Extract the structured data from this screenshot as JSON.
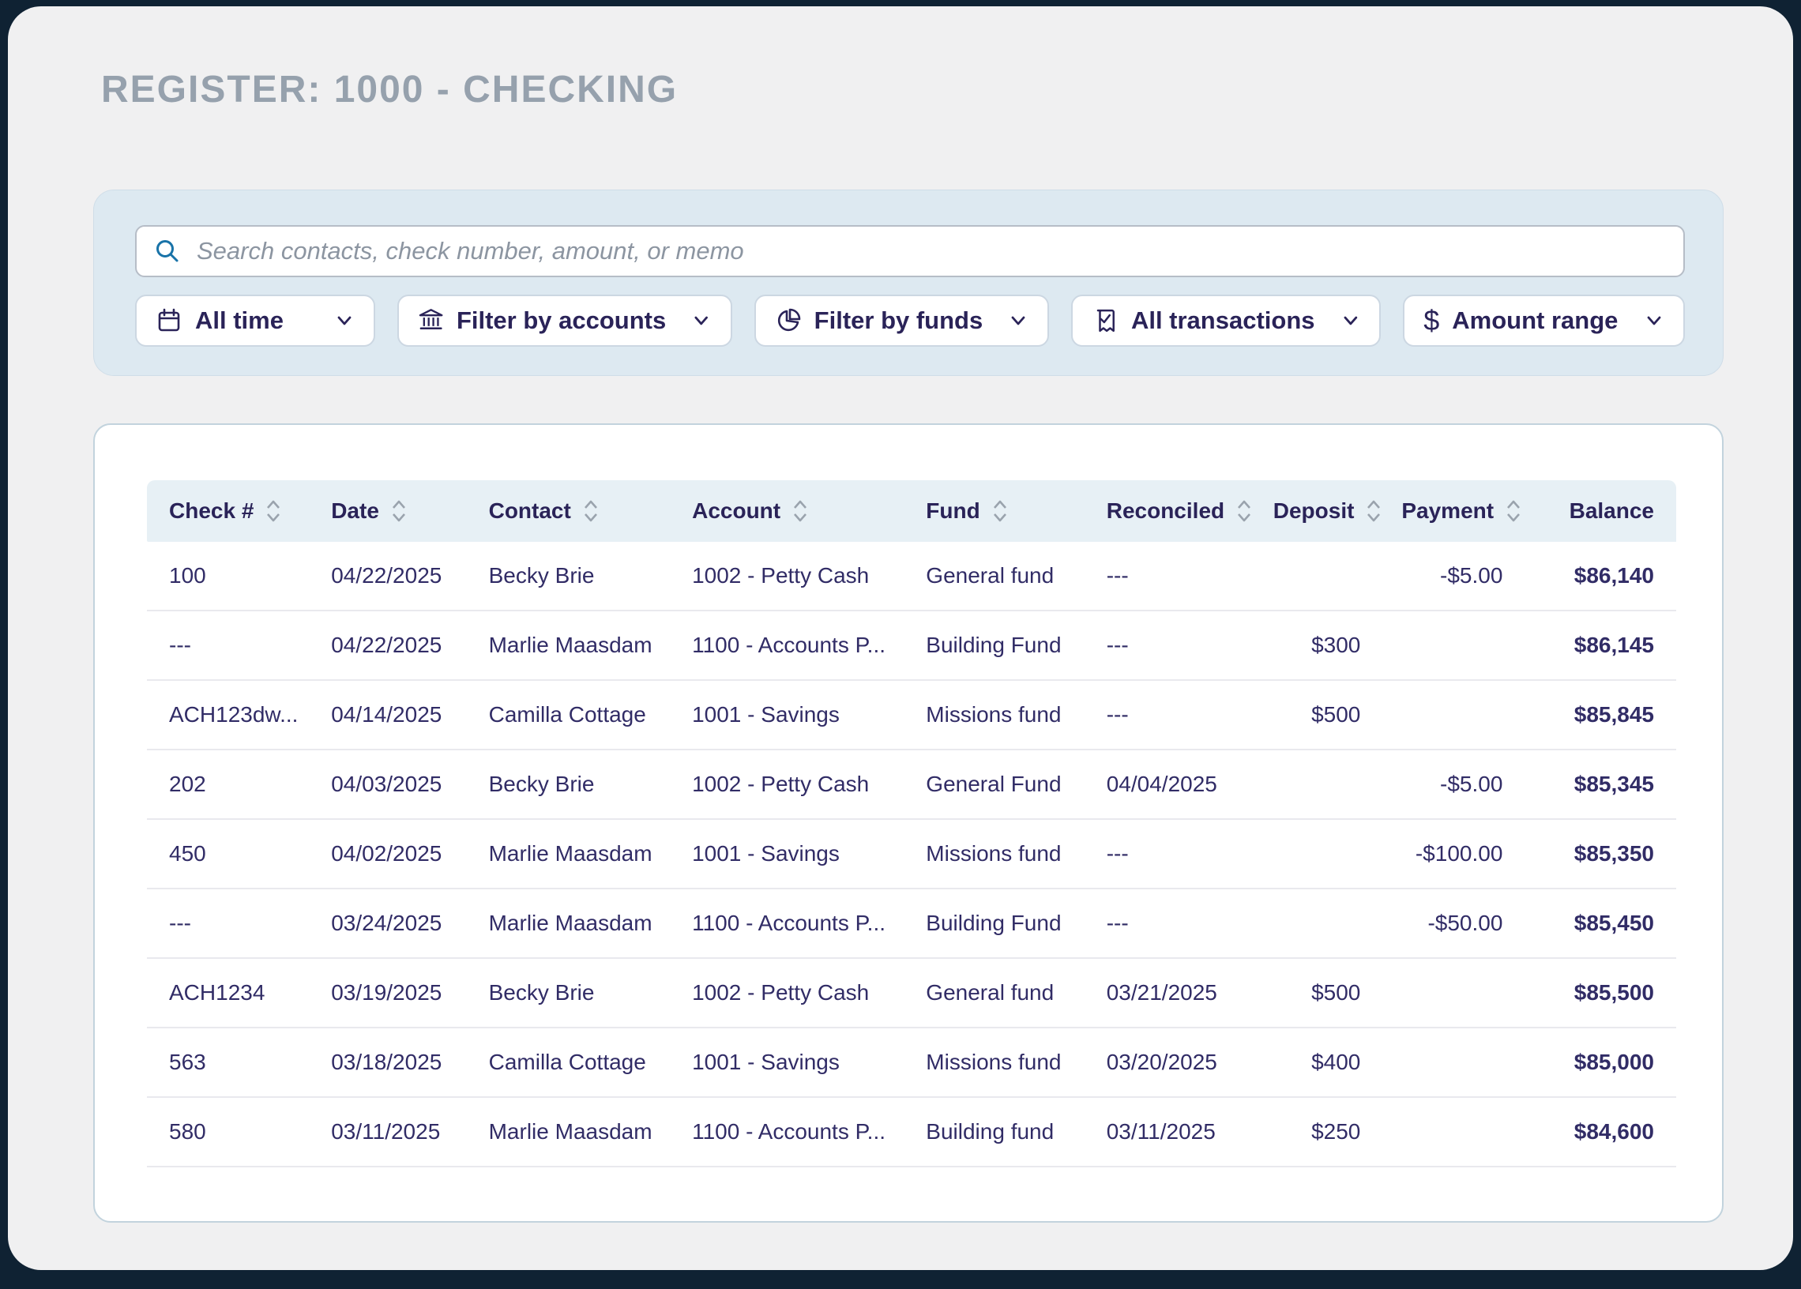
{
  "page": {
    "title": "REGISTER: 1000 - CHECKING"
  },
  "search": {
    "placeholder": "Search contacts, check number, amount, or memo"
  },
  "filters": [
    {
      "icon": "calendar-icon",
      "label": "All time"
    },
    {
      "icon": "bank-icon",
      "label": "Filter by accounts"
    },
    {
      "icon": "pie-chart-icon",
      "label": "Filter by funds"
    },
    {
      "icon": "receipt-check-icon",
      "label": "All transactions"
    },
    {
      "icon": "dollar-icon",
      "label": "Amount range"
    }
  ],
  "dollar_glyph": "$",
  "table": {
    "columns": [
      {
        "label": "Check #",
        "sortable": true,
        "align": "left"
      },
      {
        "label": "Date",
        "sortable": true,
        "align": "left"
      },
      {
        "label": "Contact",
        "sortable": true,
        "align": "left"
      },
      {
        "label": "Account",
        "sortable": true,
        "align": "left"
      },
      {
        "label": "Fund",
        "sortable": true,
        "align": "left"
      },
      {
        "label": "Reconciled",
        "sortable": true,
        "align": "left"
      },
      {
        "label": "Deposit",
        "sortable": true,
        "align": "num"
      },
      {
        "label": "Payment",
        "sortable": true,
        "align": "num"
      },
      {
        "label": "Balance",
        "sortable": false,
        "align": "bal"
      }
    ],
    "rows": [
      [
        "100",
        "04/22/2025",
        "Becky Brie",
        "1002 - Petty Cash",
        "General fund",
        "---",
        "",
        "-$5.00",
        "$86,140"
      ],
      [
        "---",
        "04/22/2025",
        "Marlie Maasdam",
        "1100 - Accounts P...",
        "Building Fund",
        "---",
        "$300",
        "",
        "$86,145"
      ],
      [
        "ACH123dw...",
        "04/14/2025",
        "Camilla Cottage",
        "1001 - Savings",
        "Missions fund",
        "---",
        "$500",
        "",
        "$85,845"
      ],
      [
        "202",
        "04/03/2025",
        "Becky Brie",
        "1002 - Petty Cash",
        "General Fund",
        "04/04/2025",
        "",
        "-$5.00",
        "$85,345"
      ],
      [
        "450",
        "04/02/2025",
        "Marlie Maasdam",
        "1001 - Savings",
        "Missions fund",
        "---",
        "",
        "-$100.00",
        "$85,350"
      ],
      [
        "---",
        "03/24/2025",
        "Marlie Maasdam",
        "1100 - Accounts P...",
        "Building Fund",
        "---",
        "",
        "-$50.00",
        "$85,450"
      ],
      [
        "ACH1234",
        "03/19/2025",
        "Becky Brie",
        "1002 - Petty Cash",
        "General fund",
        "03/21/2025",
        "$500",
        "",
        "$85,500"
      ],
      [
        "563",
        "03/18/2025",
        "Camilla Cottage",
        "1001 - Savings",
        "Missions fund",
        "03/20/2025",
        "$400",
        "",
        "$85,000"
      ],
      [
        "580",
        "03/11/2025",
        "Marlie Maasdam",
        "1100 - Accounts P...",
        "Building fund",
        "03/11/2025",
        "$250",
        "",
        "$84,600"
      ]
    ]
  },
  "colors": {
    "frame_navy": "#0f2233",
    "screen_gray": "#f0f0f1",
    "title_gray": "#96a1ad",
    "panel_blue": "#dde9f1",
    "accent_navy": "#2a2358",
    "search_icon_blue": "#1873a8",
    "header_bg": "#e7f0f5",
    "row_text": "#312c66",
    "sort_icon_gray": "#9aa3ad"
  }
}
